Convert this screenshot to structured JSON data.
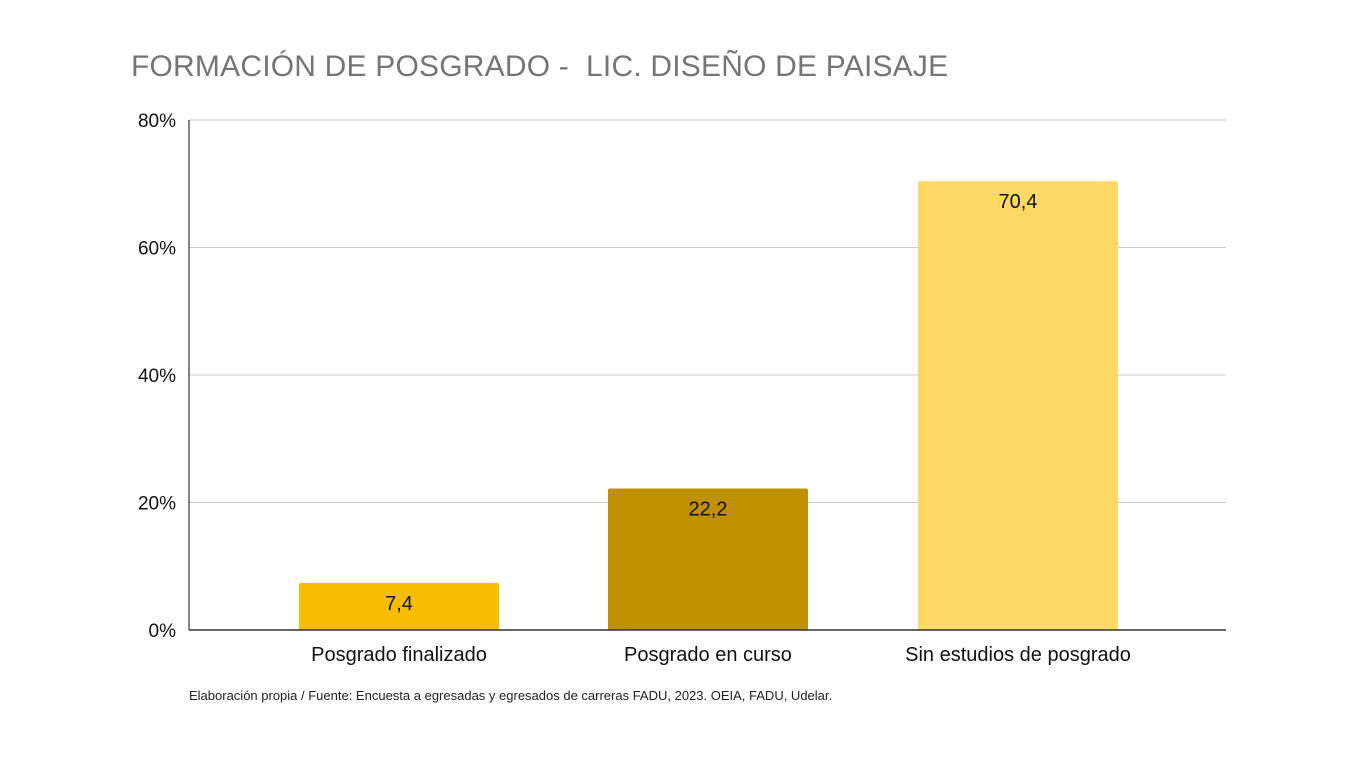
{
  "chart_data": {
    "type": "bar",
    "title": "FORMACIÓN DE POSGRADO -  LIC. DISEÑO DE PAISAJE",
    "categories": [
      "Posgrado finalizado",
      "Posgrado en curso",
      "Sin estudios de posgrado"
    ],
    "values": [
      7.4,
      22.2,
      70.4
    ],
    "data_labels": [
      "7,4",
      "22,2",
      "70,4"
    ],
    "bar_colors": [
      "#F6BD01",
      "#BF9000",
      "#FFD966"
    ],
    "ylim": [
      0,
      80
    ],
    "yticks": [
      0,
      20,
      40,
      60,
      80
    ],
    "ytick_labels": [
      "0%",
      "20%",
      "40%",
      "60%",
      "80%"
    ],
    "xlabel": "",
    "ylabel": "",
    "grid": true,
    "legend": "none",
    "gridline_color": "#CCCCCC",
    "axis_color": "#333333"
  },
  "source_note": "Elaboración propia / Fuente: Encuesta a egresadas y egresados de carreras FADU, 2023. OEIA, FADU, Udelar."
}
